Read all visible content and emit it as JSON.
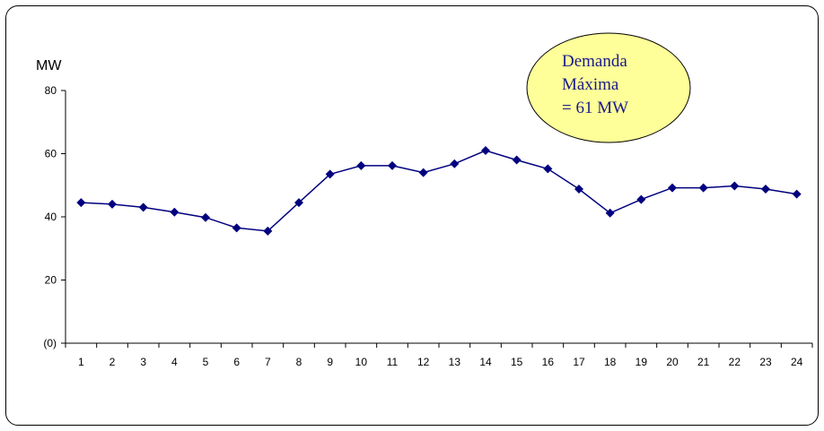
{
  "chart_data": {
    "type": "line",
    "ylabel": "MW",
    "ylim": [
      0,
      80
    ],
    "yticks": [
      {
        "value": 0,
        "label": "(0)"
      },
      {
        "value": 20,
        "label": "20"
      },
      {
        "value": 40,
        "label": "40"
      },
      {
        "value": 60,
        "label": "60"
      },
      {
        "value": 80,
        "label": "80"
      }
    ],
    "categories": [
      "1",
      "2",
      "3",
      "4",
      "5",
      "6",
      "7",
      "8",
      "9",
      "10",
      "11",
      "12",
      "13",
      "14",
      "15",
      "16",
      "17",
      "18",
      "19",
      "20",
      "21",
      "22",
      "23",
      "24"
    ],
    "series": [
      {
        "values": [
          44.5,
          44.0,
          43.0,
          41.5,
          39.8,
          36.5,
          35.5,
          44.5,
          53.5,
          56.2,
          56.2,
          54.0,
          56.8,
          61.0,
          58.0,
          55.2,
          48.8,
          41.2,
          45.5,
          49.2,
          49.2,
          49.8,
          48.8,
          47.2
        ]
      }
    ],
    "annotation": {
      "lines": [
        "Demanda",
        "Máxima",
        "= 61 MW"
      ]
    },
    "colors": {
      "line": "#00007f",
      "marker": "#00007f",
      "annotation_fill": "#ffff99",
      "annotation_text": "#1a1a8c"
    },
    "grid": false,
    "legend": "none"
  }
}
